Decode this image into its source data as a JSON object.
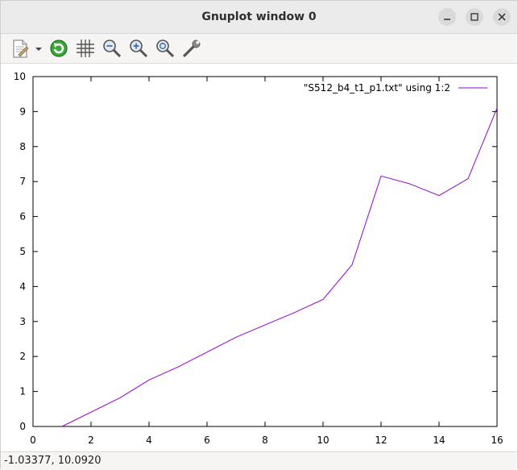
{
  "window": {
    "title": "Gnuplot window 0"
  },
  "titlebar_buttons": [
    "minimize",
    "maximize",
    "close"
  ],
  "toolbar": {
    "icons": [
      "copy-to-clipboard-icon",
      "dropdown-arrow-icon",
      "replot-icon",
      "grid-icon",
      "zoom-out-icon",
      "zoom-in-icon",
      "zoom-reset-icon",
      "settings-wrench-icon"
    ]
  },
  "status": {
    "coordinates": "-1.03377,  10.0920"
  },
  "colors": {
    "series": "#9400d3",
    "replot_icon": "#2e9c2e"
  },
  "chart_data": {
    "type": "line",
    "xlim": [
      0,
      16
    ],
    "ylim": [
      0,
      10
    ],
    "x_ticks": [
      "0",
      "2",
      "4",
      "6",
      "8",
      "10",
      "12",
      "14",
      "16"
    ],
    "y_ticks": [
      "0",
      "1",
      "2",
      "3",
      "4",
      "5",
      "6",
      "7",
      "8",
      "9",
      "10"
    ],
    "legend_position": "top-right",
    "grid": false,
    "series": [
      {
        "name": "\"S512_b4_t1_p1.txt\" using 1:2",
        "x": [
          1,
          3,
          4,
          5,
          7,
          8,
          9,
          10,
          11,
          12,
          13,
          14,
          15,
          16
        ],
        "y": [
          0,
          0.82,
          1.33,
          1.7,
          2.55,
          2.9,
          3.25,
          3.63,
          4.62,
          7.16,
          6.93,
          6.6,
          7.08,
          9.1
        ]
      }
    ]
  }
}
